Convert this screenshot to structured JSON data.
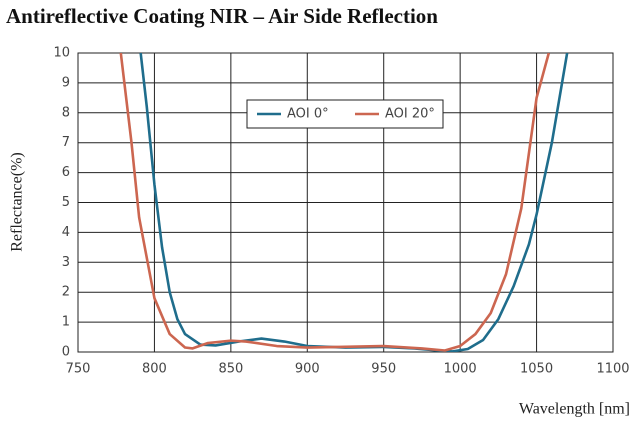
{
  "chart_data": {
    "type": "line",
    "title": "Antireflective Coating NIR – Air Side Reflection",
    "x_label": "Wavelength [nm]",
    "y_label": "Reflectance(%)",
    "xlim": [
      750,
      1100
    ],
    "xticks": [
      750,
      800,
      850,
      900,
      950,
      1000,
      1050,
      1100
    ],
    "ylim": [
      0,
      10
    ],
    "yticks": [
      0,
      1,
      2,
      3,
      4,
      5,
      6,
      7,
      8,
      9,
      10
    ],
    "grid": true,
    "legend": "top-center",
    "series": [
      {
        "name": "AOI 0°",
        "color": "#1f6d8c",
        "x": [
          791,
          795,
          800,
          805,
          810,
          815,
          820,
          830,
          840,
          855,
          870,
          885,
          900,
          925,
          950,
          970,
          985,
          995,
          1005,
          1015,
          1025,
          1035,
          1045,
          1050,
          1060,
          1070
        ],
        "values": [
          10,
          8.2,
          5.6,
          3.5,
          2,
          1.1,
          0.6,
          0.25,
          0.22,
          0.35,
          0.45,
          0.35,
          0.2,
          0.15,
          0.17,
          0.12,
          0.05,
          0.02,
          0.1,
          0.4,
          1.1,
          2.2,
          3.6,
          4.6,
          7,
          10
        ]
      },
      {
        "name": "AOI 20°",
        "color": "#cc6650",
        "x": [
          778,
          785,
          790,
          800,
          810,
          820,
          825,
          835,
          850,
          860,
          880,
          900,
          950,
          975,
          990,
          1000,
          1010,
          1020,
          1030,
          1040,
          1050,
          1058
        ],
        "values": [
          10,
          7,
          4.5,
          1.8,
          0.6,
          0.15,
          0.12,
          0.3,
          0.38,
          0.35,
          0.2,
          0.15,
          0.2,
          0.12,
          0.05,
          0.2,
          0.6,
          1.3,
          2.6,
          4.8,
          8.5,
          10
        ]
      }
    ]
  }
}
